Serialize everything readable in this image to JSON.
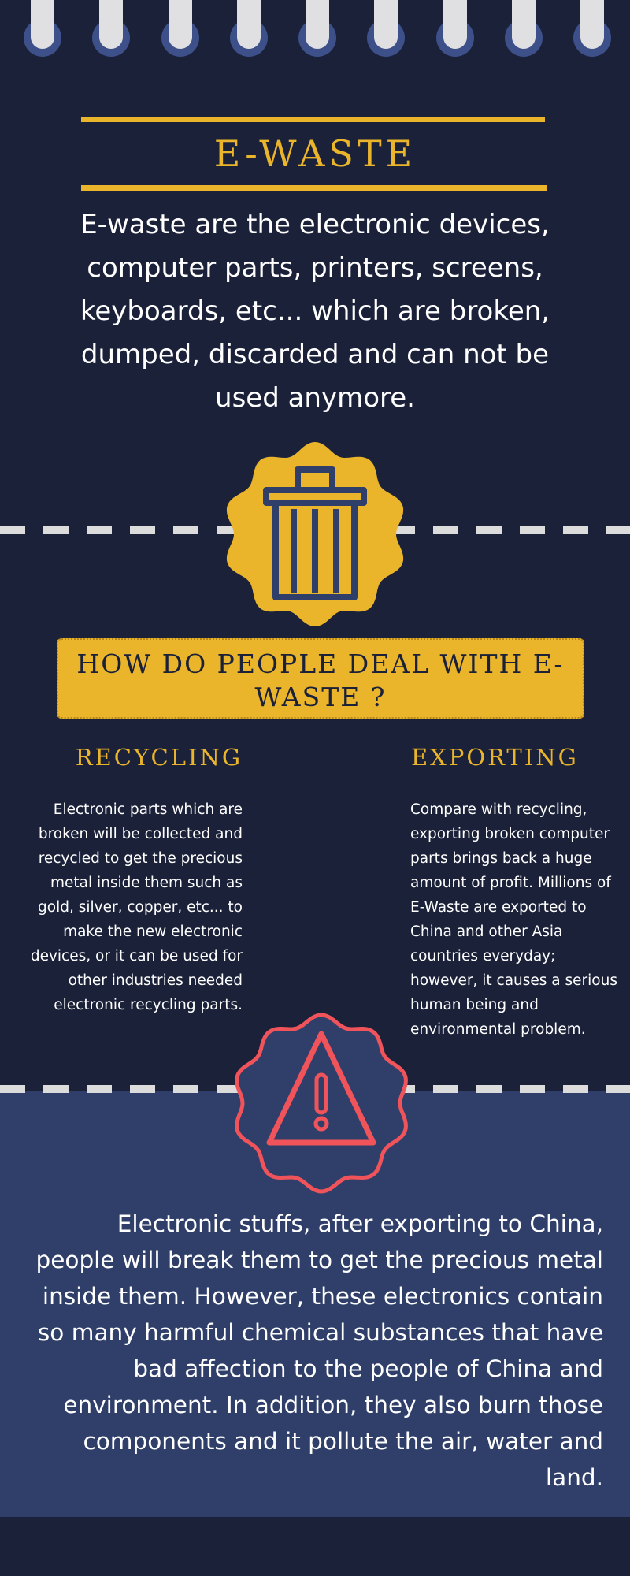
{
  "header": {
    "title": "E-WASTE",
    "intro": "E-waste are the electronic devices, computer parts, printers, screens, keyboards, etc... which are broken, dumped, discarded and can not be used anymore."
  },
  "icons": {
    "trash": "trash-can-icon",
    "warning": "warning-triangle-icon",
    "binding": "binder-ring-icon"
  },
  "banner": {
    "question": "HOW DO PEOPLE DEAL WITH E-WASTE ?"
  },
  "recycling": {
    "title": "RECYCLING",
    "text": "Electronic parts which are broken will be collected and recycled to get the precious metal inside them such as gold, silver, copper, etc... to make the new electronic devices, or it can be used for other industries needed electronic recycling parts."
  },
  "exporting": {
    "title": "EXPORTING",
    "text": "Compare with recycling, exporting broken computer parts brings back a huge amount of profit. Millions of E-Waste are exported to China and other Asia countries everyday; however, it causes a serious human being and environmental problem."
  },
  "consequence": {
    "text": "Electronic stuffs, after exporting to China, people will break them to get the precious metal inside them. However, these electronics contain so many harmful chemical substances that have bad affection to the people of China and environment. In addition, they also burn those components and it pollute the air, water and land."
  },
  "colors": {
    "background": "#1b2139",
    "accent": "#ebb52b",
    "panel": "#2f3f6a",
    "warning": "#f0545a",
    "dashes": "#dcdcdc"
  }
}
